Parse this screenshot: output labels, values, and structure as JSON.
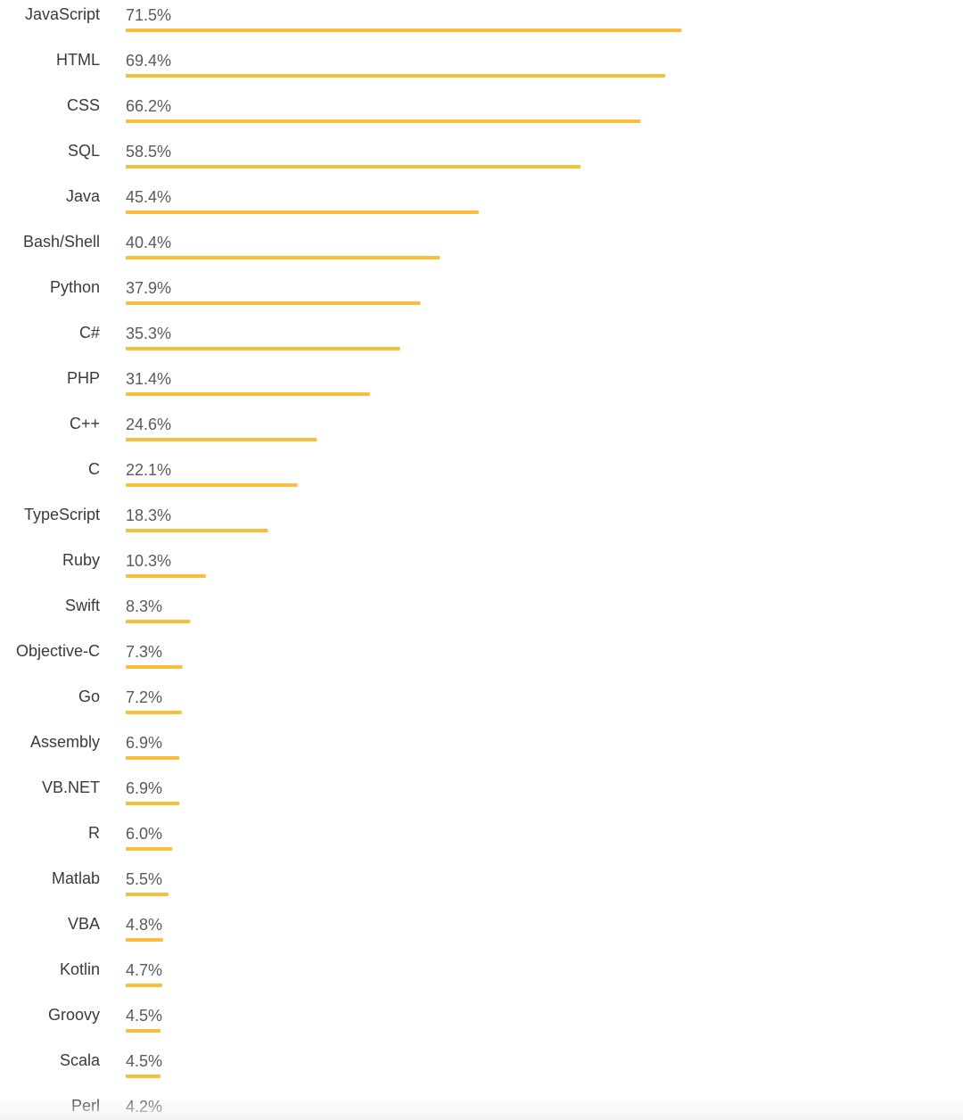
{
  "chart_data": {
    "type": "bar",
    "orientation": "horizontal",
    "bar_color": "#FBBD3C",
    "label_color": "#3a3a3a",
    "value_color": "#5a5a5a",
    "xlim": [
      0,
      100
    ],
    "categories": [
      "JavaScript",
      "HTML",
      "CSS",
      "SQL",
      "Java",
      "Bash/Shell",
      "Python",
      "C#",
      "PHP",
      "C++",
      "C",
      "TypeScript",
      "Ruby",
      "Swift",
      "Objective-C",
      "Go",
      "Assembly",
      "VB.NET",
      "R",
      "Matlab",
      "VBA",
      "Kotlin",
      "Groovy",
      "Scala",
      "Perl"
    ],
    "values": [
      71.5,
      69.4,
      66.2,
      58.5,
      45.4,
      40.4,
      37.9,
      35.3,
      31.4,
      24.6,
      22.1,
      18.3,
      10.3,
      8.3,
      7.3,
      7.2,
      6.9,
      6.9,
      6.0,
      5.5,
      4.8,
      4.7,
      4.5,
      4.5,
      4.2
    ],
    "value_labels": [
      "71.5%",
      "69.4%",
      "66.2%",
      "58.5%",
      "45.4%",
      "40.4%",
      "37.9%",
      "35.3%",
      "31.4%",
      "24.6%",
      "22.1%",
      "18.3%",
      "10.3%",
      "8.3%",
      "7.3%",
      "7.2%",
      "6.9%",
      "6.9%",
      "6.0%",
      "5.5%",
      "4.8%",
      "4.7%",
      "4.5%",
      "4.5%",
      "4.2%"
    ]
  }
}
